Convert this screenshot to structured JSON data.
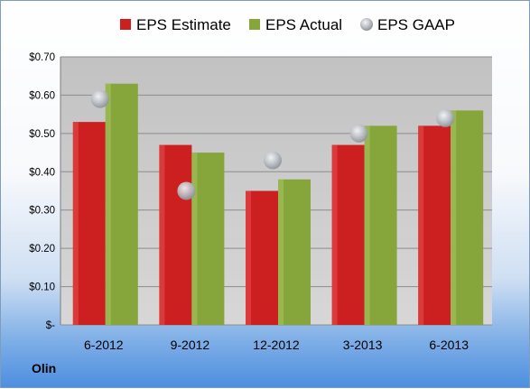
{
  "company": "Olin",
  "colors": {
    "estimate": "#cc1f1f",
    "actual": "#86a63c",
    "gaap": "#b9bdc3"
  },
  "chart_data": {
    "type": "bar",
    "categories": [
      "6-2012",
      "9-2012",
      "12-2012",
      "3-2013",
      "6-2013"
    ],
    "series": [
      {
        "name": "EPS Estimate",
        "type": "bar",
        "values": [
          0.53,
          0.47,
          0.35,
          0.47,
          0.52
        ]
      },
      {
        "name": "EPS Actual",
        "type": "bar",
        "values": [
          0.63,
          0.45,
          0.38,
          0.52,
          0.56
        ]
      },
      {
        "name": "EPS GAAP",
        "type": "scatter",
        "values": [
          0.59,
          0.35,
          0.43,
          0.5,
          0.54
        ]
      }
    ],
    "ylim": [
      0,
      0.7
    ],
    "yticks": [
      0,
      0.1,
      0.2,
      0.3,
      0.4,
      0.5,
      0.6,
      0.7
    ],
    "ytick_labels": [
      "$-",
      "$0.10",
      "$0.20",
      "$0.30",
      "$0.40",
      "$0.50",
      "$0.60",
      "$0.70"
    ],
    "grid": true,
    "legend_position": "top"
  }
}
